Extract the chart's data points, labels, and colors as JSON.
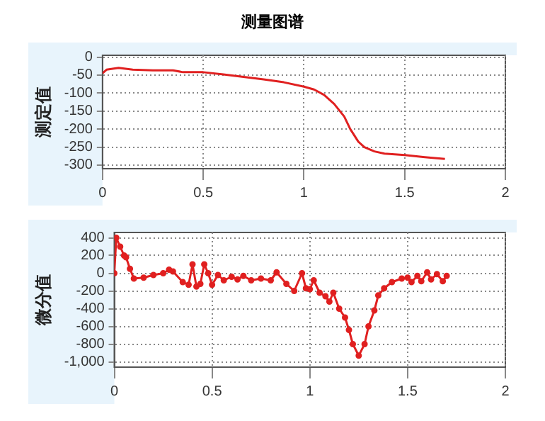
{
  "chart_data": [
    {
      "type": "line",
      "title": "测量图谱",
      "ylabel": "测定值",
      "x": [
        0,
        0.02,
        0.08,
        0.15,
        0.25,
        0.35,
        0.4,
        0.5,
        0.6,
        0.7,
        0.8,
        0.9,
        1.0,
        1.05,
        1.1,
        1.15,
        1.2,
        1.23,
        1.27,
        1.3,
        1.35,
        1.4,
        1.5,
        1.6,
        1.7
      ],
      "series": [
        {
          "color": "#e02020",
          "values": [
            -45,
            -35,
            -30,
            -35,
            -37,
            -37,
            -42,
            -42,
            -48,
            -55,
            -62,
            -70,
            -82,
            -90,
            -105,
            -130,
            -165,
            -200,
            -235,
            -250,
            -262,
            -268,
            -272,
            -278,
            -283
          ]
        }
      ],
      "xlim": [
        0,
        2
      ],
      "xticks": [
        0,
        0.5,
        1,
        1.5,
        2
      ],
      "ylim": [
        -310,
        5
      ],
      "yticks": [
        0,
        -50,
        -100,
        -150,
        -200,
        -250,
        -300
      ],
      "grid": true,
      "legend": false,
      "marker": "none",
      "line_style": "solid"
    },
    {
      "type": "line",
      "ylabel": "微分值",
      "x": [
        0,
        0.01,
        0.03,
        0.05,
        0.06,
        0.08,
        0.1,
        0.15,
        0.2,
        0.25,
        0.28,
        0.3,
        0.35,
        0.38,
        0.4,
        0.42,
        0.44,
        0.46,
        0.48,
        0.5,
        0.53,
        0.56,
        0.6,
        0.63,
        0.66,
        0.7,
        0.75,
        0.8,
        0.83,
        0.88,
        0.92,
        0.96,
        0.98,
        1.0,
        1.02,
        1.05,
        1.08,
        1.1,
        1.12,
        1.15,
        1.18,
        1.2,
        1.22,
        1.25,
        1.28,
        1.3,
        1.33,
        1.35,
        1.38,
        1.42,
        1.47,
        1.5,
        1.52,
        1.55,
        1.57,
        1.6,
        1.62,
        1.65,
        1.68,
        1.7
      ],
      "series": [
        {
          "color": "#e02020",
          "values": [
            0,
            400,
            300,
            200,
            180,
            50,
            -60,
            -50,
            -20,
            0,
            40,
            20,
            -100,
            -130,
            100,
            -150,
            -120,
            100,
            0,
            -130,
            -20,
            -80,
            -40,
            -70,
            -30,
            -80,
            -60,
            -80,
            10,
            -120,
            -200,
            0,
            -170,
            -180,
            -80,
            -220,
            -260,
            -320,
            -220,
            -400,
            -500,
            -640,
            -800,
            -930,
            -800,
            -600,
            -420,
            -250,
            -170,
            -100,
            -60,
            -50,
            -100,
            -30,
            -90,
            10,
            -70,
            -10,
            -90,
            -30
          ]
        }
      ],
      "xlim": [
        0,
        2
      ],
      "xticks": [
        0,
        0.5,
        1,
        1.5,
        2
      ],
      "ylim": [
        -1060,
        460
      ],
      "yticks": [
        400,
        200,
        0,
        -200,
        -400,
        -600,
        -800,
        {
          "value": -1000,
          "label": "-1,000"
        }
      ],
      "grid": true,
      "legend": false,
      "marker": "circle",
      "line_style": "solid"
    }
  ]
}
